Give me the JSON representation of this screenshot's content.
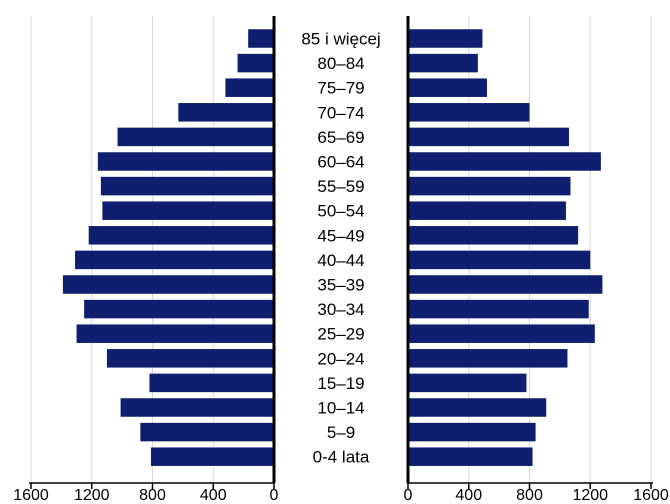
{
  "chart_data": {
    "type": "bar",
    "orientation": "horizontal",
    "layout": "population-pyramid",
    "bar_color": "#0f1e6e",
    "grid": true,
    "categories": [
      "85 i więcej",
      "80–84",
      "75–79",
      "70–74",
      "65–69",
      "60–64",
      "55–59",
      "50–54",
      "45–49",
      "40–44",
      "35–39",
      "30–34",
      "25–29",
      "20–24",
      "15–19",
      "10–14",
      "5–9",
      "0-4 lata"
    ],
    "series": [
      {
        "side": "left",
        "values": [
          170,
          240,
          320,
          630,
          1030,
          1160,
          1140,
          1130,
          1220,
          1310,
          1390,
          1250,
          1300,
          1100,
          820,
          1010,
          880,
          810
        ]
      },
      {
        "side": "right",
        "values": [
          490,
          460,
          520,
          800,
          1060,
          1270,
          1070,
          1040,
          1120,
          1200,
          1280,
          1190,
          1230,
          1050,
          780,
          910,
          840,
          820
        ]
      }
    ],
    "left_axis": {
      "range": [
        1600,
        0
      ],
      "ticks": [
        1600,
        1200,
        800,
        400,
        0
      ],
      "tick_labels": [
        "1600",
        "1200",
        "800",
        "400",
        "0"
      ]
    },
    "right_axis": {
      "range": [
        0,
        1600
      ],
      "ticks": [
        0,
        400,
        800,
        1200,
        1600
      ],
      "tick_labels": [
        "0",
        "400",
        "800",
        "1200",
        "1600"
      ]
    }
  }
}
